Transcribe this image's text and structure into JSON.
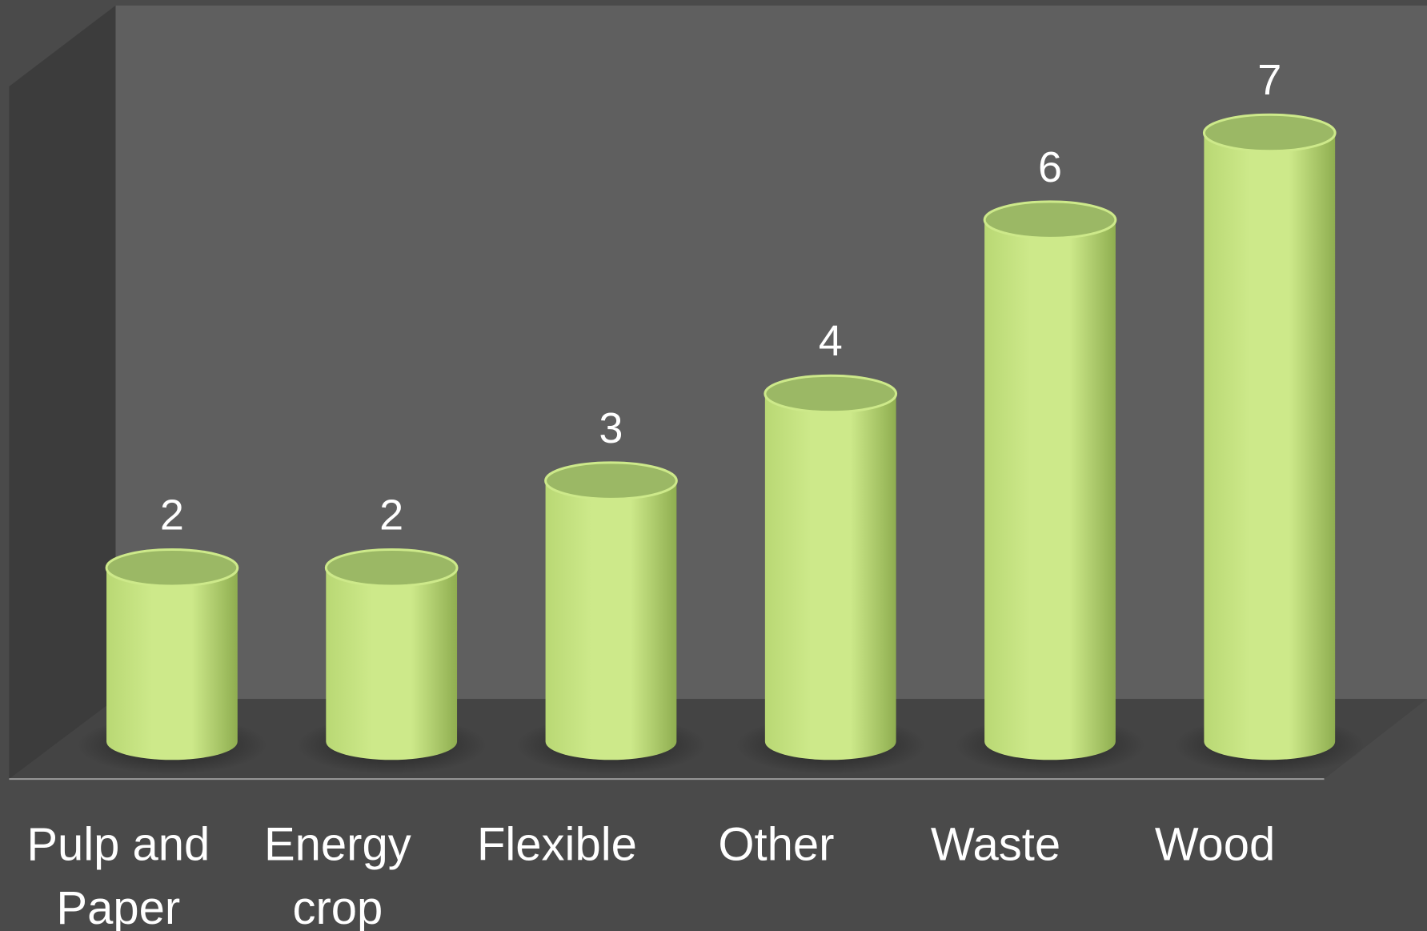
{
  "chart_data": {
    "type": "bar",
    "style": "3d-cylinder",
    "categories": [
      [
        "Pulp and",
        "Paper"
      ],
      [
        "Energy",
        "crop"
      ],
      [
        "Flexible"
      ],
      [
        "Other"
      ],
      [
        "Waste"
      ],
      [
        "Wood"
      ]
    ],
    "values": [
      2,
      2,
      3,
      4,
      6,
      7
    ],
    "data_labels": [
      "2",
      "2",
      "3",
      "4",
      "6",
      "7"
    ],
    "title": "",
    "xlabel": "",
    "ylabel": "",
    "ylim": [
      0,
      7
    ],
    "grid": false,
    "legend": "none",
    "colors": {
      "background": "#4a4a4a",
      "back_wall": "#5f5f5f",
      "side_wall": "#3c3c3c",
      "floor": "#444444",
      "bar_light": "#cde98a",
      "bar_mid": "#b9d874",
      "bar_dark": "#8fae50",
      "bar_top": "#9bb865",
      "text": "#ffffff"
    }
  }
}
